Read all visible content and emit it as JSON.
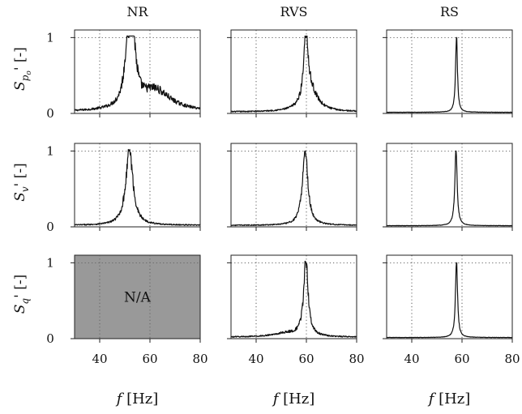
{
  "figure": {
    "columns": [
      "NR",
      "RVS",
      "RS"
    ],
    "xlabel": "f [Hz]",
    "xlabel_italic_part": "f",
    "xlabel_unit": "[Hz]",
    "na_text": "N/A",
    "na_color": "#999999"
  },
  "chart_data": {
    "type": "line",
    "layout": "3x3 grid of spectra",
    "rows": [
      {
        "ylabel": "S_{p_o}' [-]",
        "ylabel_main": "S",
        "ylabel_sub": "p",
        "ylabel_subsub": "o",
        "ylabel_tail": "' [-]"
      },
      {
        "ylabel": "S_v' [-]",
        "ylabel_main": "S",
        "ylabel_sub": "v",
        "ylabel_subsub": "",
        "ylabel_tail": "' [-]"
      },
      {
        "ylabel": "S_q' [-]",
        "ylabel_main": "S",
        "ylabel_sub": "q",
        "ylabel_subsub": "",
        "ylabel_tail": "' [-]"
      }
    ],
    "xlim": [
      30,
      80
    ],
    "ylim": [
      0,
      1.1
    ],
    "xticks": [
      40,
      60,
      80
    ],
    "yticks": [
      0,
      1
    ],
    "reference_lines": {
      "y": 1,
      "x": [
        40,
        60
      ],
      "style": "dotted"
    },
    "panels": [
      {
        "row": 0,
        "col": 0,
        "available": true,
        "peak_hz": 51.5,
        "peaks": [
          {
            "f": 51.5,
            "a": 1.0,
            "w": 1.6
          },
          {
            "f": 53.5,
            "a": 0.55,
            "w": 1.4
          },
          {
            "f": 62,
            "a": 0.28,
            "w": 7.5
          }
        ],
        "floor": 0.02,
        "noise": 0.1
      },
      {
        "row": 0,
        "col": 1,
        "available": true,
        "peak_hz": 59.8,
        "peaks": [
          {
            "f": 59.8,
            "a": 1.0,
            "w": 0.9
          },
          {
            "f": 61.5,
            "a": 0.28,
            "w": 3.5
          }
        ],
        "floor": 0.02,
        "noise": 0.08
      },
      {
        "row": 0,
        "col": 2,
        "available": true,
        "peak_hz": 57.8,
        "peaks": [
          {
            "f": 57.8,
            "a": 1.0,
            "w": 0.45
          }
        ],
        "floor": 0.015,
        "noise": 0.03
      },
      {
        "row": 1,
        "col": 0,
        "available": true,
        "peak_hz": 51.8,
        "peaks": [
          {
            "f": 51.8,
            "a": 1.0,
            "w": 1.7
          }
        ],
        "floor": 0.02,
        "noise": 0.08
      },
      {
        "row": 1,
        "col": 1,
        "available": true,
        "peak_hz": 59.5,
        "peaks": [
          {
            "f": 59.5,
            "a": 1.0,
            "w": 1.3
          }
        ],
        "floor": 0.02,
        "noise": 0.07
      },
      {
        "row": 1,
        "col": 2,
        "available": true,
        "peak_hz": 57.6,
        "peaks": [
          {
            "f": 57.6,
            "a": 1.0,
            "w": 0.55
          }
        ],
        "floor": 0.015,
        "noise": 0.03
      },
      {
        "row": 2,
        "col": 0,
        "available": false
      },
      {
        "row": 2,
        "col": 1,
        "available": true,
        "peak_hz": 59.8,
        "peaks": [
          {
            "f": 59.8,
            "a": 1.0,
            "w": 1.1
          },
          {
            "f": 52,
            "a": 0.05,
            "w": 6
          }
        ],
        "floor": 0.02,
        "noise": 0.08
      },
      {
        "row": 2,
        "col": 2,
        "available": true,
        "peak_hz": 57.8,
        "peaks": [
          {
            "f": 57.8,
            "a": 1.0,
            "w": 0.5
          }
        ],
        "floor": 0.015,
        "noise": 0.03
      }
    ]
  }
}
